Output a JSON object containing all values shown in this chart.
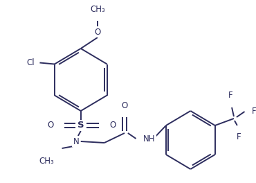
{
  "bg_color": "#ffffff",
  "line_color": "#2d2d5e",
  "line_width": 1.4,
  "font_size": 8.5,
  "figsize": [
    3.7,
    2.64
  ],
  "dpi": 100,
  "xlim": [
    0,
    370
  ],
  "ylim": [
    0,
    264
  ]
}
